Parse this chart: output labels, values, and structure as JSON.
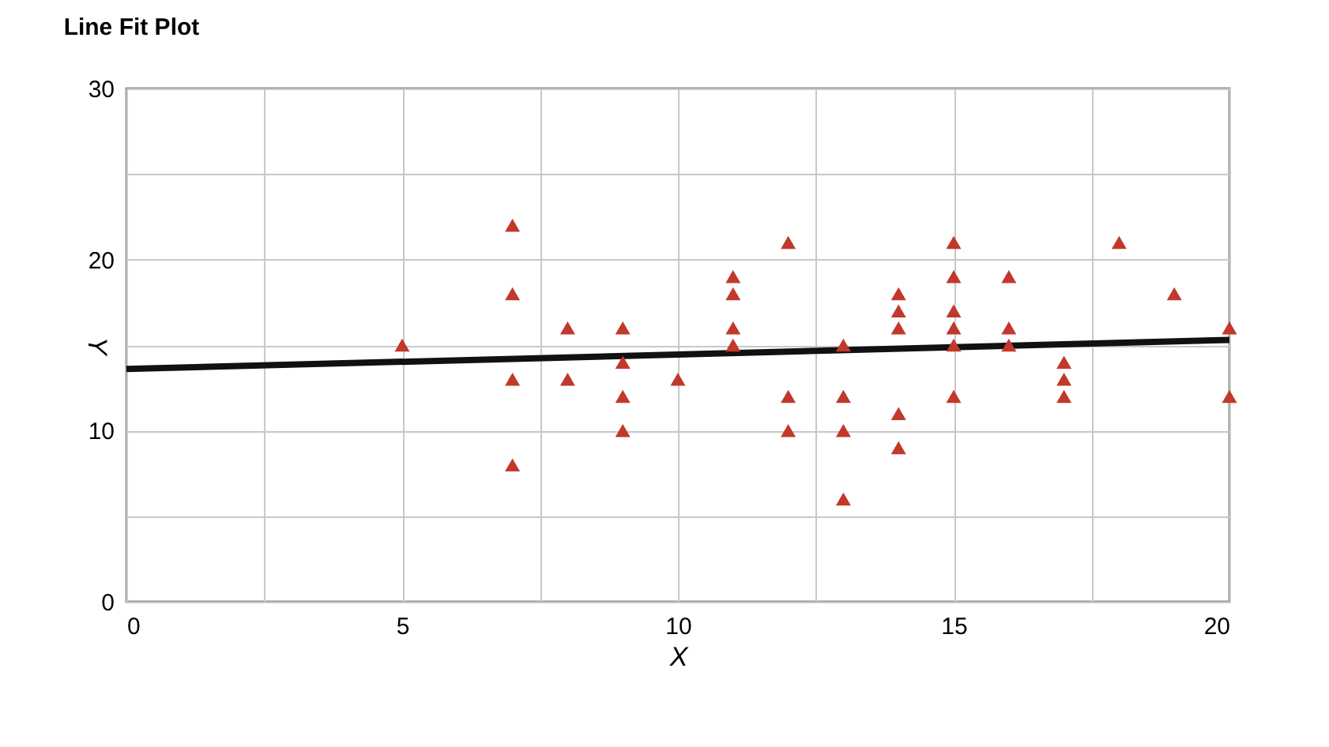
{
  "chart_data": {
    "type": "scatter",
    "title": "Line Fit Plot",
    "xlabel": "X",
    "ylabel": "Y",
    "xlim": [
      0,
      20
    ],
    "ylim": [
      0,
      30
    ],
    "xticks": [
      0,
      {
        "value": 2.5,
        "label": null
      },
      5,
      {
        "value": 7.5,
        "label": null
      },
      10,
      {
        "value": 12.5,
        "label": null
      },
      15,
      {
        "value": 17.5,
        "label": null
      },
      20
    ],
    "yticks": [
      0,
      {
        "value": 5,
        "label": null
      },
      10,
      {
        "value": 15,
        "label": null
      },
      20,
      {
        "value": 25,
        "label": null
      },
      30
    ],
    "grid": true,
    "series": [
      {
        "marker": "triangle",
        "color": "#c0392b",
        "x": [
          5,
          7,
          7,
          7,
          7,
          8,
          8,
          9,
          9,
          9,
          9,
          10,
          11,
          11,
          11,
          11,
          12,
          12,
          12,
          13,
          13,
          13,
          13,
          14,
          14,
          14,
          14,
          14,
          15,
          15,
          15,
          15,
          15,
          15,
          16,
          16,
          16,
          17,
          17,
          17,
          18,
          19,
          20,
          20
        ],
        "values": [
          15,
          22,
          18,
          13,
          8,
          16,
          13,
          16,
          14,
          12,
          10,
          13,
          19,
          18,
          16,
          15,
          21,
          12,
          10,
          15,
          12,
          10,
          6,
          18,
          17,
          16,
          11,
          9,
          21,
          19,
          17,
          16,
          15,
          12,
          19,
          16,
          15,
          14,
          13,
          12,
          21,
          18,
          16,
          12
        ]
      },
      {
        "type": "line",
        "color": "#111111",
        "line_style": "solid",
        "x": [
          0,
          20
        ],
        "values": [
          13.6,
          15.3
        ]
      }
    ]
  }
}
